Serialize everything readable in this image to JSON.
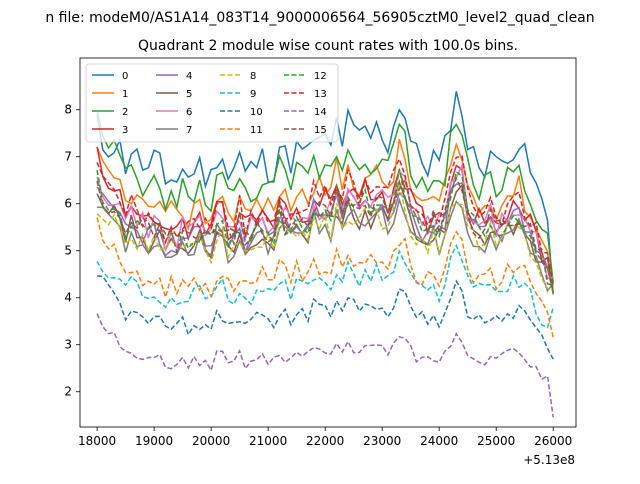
{
  "chart_data": {
    "type": "line",
    "suptitle": "n file: modeM0/AS1A14_083T14_9000006564_56905cztM0_level2_quad_clean",
    "title": "Quadrant 2 module wise count rates with 100.0s bins.",
    "xlabel": "",
    "ylabel": "",
    "x_offset_label": "+5.13e8",
    "xlim": [
      17700,
      26400
    ],
    "ylim": [
      1.25,
      9.1
    ],
    "x_ticks": [
      18000,
      19000,
      20000,
      21000,
      22000,
      23000,
      24000,
      25000,
      26000
    ],
    "y_ticks": [
      2,
      3,
      4,
      5,
      6,
      7,
      8
    ],
    "x_range": [
      18000,
      26000
    ],
    "bin_seconds": 100,
    "legend_position": "top-left",
    "legend_columns": 4,
    "series": [
      {
        "name": "0",
        "color": "#1f77b4",
        "dashed": false,
        "base": 7.0,
        "start": 7.6,
        "end": 4.6
      },
      {
        "name": "1",
        "color": "#ff7f0e",
        "dashed": false,
        "base": 6.1,
        "start": 7.0,
        "end": 4.5
      },
      {
        "name": "2",
        "color": "#2ca02c",
        "dashed": false,
        "base": 6.5,
        "start": 7.8,
        "end": 4.7
      },
      {
        "name": "3",
        "color": "#d62728",
        "dashed": false,
        "base": 5.8,
        "start": 7.1,
        "end": 4.4
      },
      {
        "name": "4",
        "color": "#9467bd",
        "dashed": false,
        "base": 5.5,
        "start": 6.3,
        "end": 4.5
      },
      {
        "name": "5",
        "color": "#8c564b",
        "dashed": false,
        "base": 5.4,
        "start": 6.2,
        "end": 4.3
      },
      {
        "name": "6",
        "color": "#e377c2",
        "dashed": false,
        "base": 5.7,
        "start": 6.6,
        "end": 4.6
      },
      {
        "name": "7",
        "color": "#7f7f7f",
        "dashed": false,
        "base": 5.3,
        "start": 6.0,
        "end": 4.4
      },
      {
        "name": "8",
        "color": "#bcbd22",
        "dashed": true,
        "base": 5.3,
        "start": 5.9,
        "end": 4.2
      },
      {
        "name": "9",
        "color": "#17becf",
        "dashed": true,
        "base": 4.2,
        "start": 4.9,
        "end": 3.8
      },
      {
        "name": "10",
        "color": "#1f77b4",
        "dashed": true,
        "base": 3.6,
        "start": 4.6,
        "end": 3.0
      },
      {
        "name": "11",
        "color": "#ff7f0e",
        "dashed": true,
        "base": 4.5,
        "start": 5.5,
        "end": 3.5
      },
      {
        "name": "12",
        "color": "#2ca02c",
        "dashed": true,
        "base": 5.6,
        "start": 6.5,
        "end": 4.5
      },
      {
        "name": "13",
        "color": "#d62728",
        "dashed": true,
        "base": 5.9,
        "start": 6.7,
        "end": 4.6
      },
      {
        "name": "14",
        "color": "#9467bd",
        "dashed": true,
        "base": 2.75,
        "start": 3.6,
        "end": 1.6
      },
      {
        "name": "15",
        "color": "#8c564b",
        "dashed": true,
        "base": 5.6,
        "start": 6.4,
        "end": 4.5
      }
    ]
  }
}
